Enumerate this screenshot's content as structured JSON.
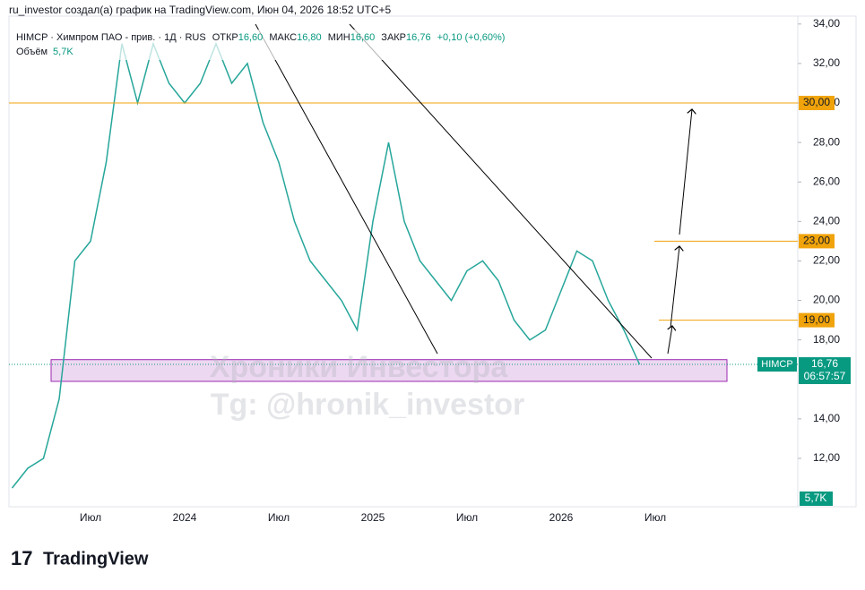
{
  "header": {
    "attribution": "ru_investor создал(а) график на TradingView.com, Июн 04, 2026 18:52 UTC+5",
    "symbol": "HIMCP · Химпром ПАО - прив. · 1Д · RUS",
    "open_label": "ОТКР",
    "open": "16,60",
    "high_label": "МАКС",
    "high": "16,80",
    "low_label": "МИН",
    "low": "16,60",
    "close_label": "ЗАКР",
    "close": "16,76",
    "change": "+0,10 (+0,60%)",
    "volume_label": "Объём",
    "volume": "5,7K"
  },
  "watermark": {
    "line1": "Хроники Инвестора",
    "line2": "Tg: @hronik_investor"
  },
  "price_tag": {
    "symbol": "HIMCP",
    "price": "16,76",
    "countdown": "06:57:57"
  },
  "volume_badge": "5,7K",
  "footer": {
    "logo": "TradingView"
  },
  "chart_data": {
    "type": "line",
    "color": "#26a69a",
    "categories": [
      null,
      null,
      null,
      null,
      null,
      "Июл",
      null,
      null,
      null,
      null,
      null,
      "2024",
      null,
      null,
      null,
      null,
      null,
      "Июл",
      null,
      null,
      null,
      null,
      null,
      "2025",
      null,
      null,
      null,
      null,
      null,
      "Июл",
      null,
      null,
      null,
      null,
      null,
      "2026",
      null,
      null,
      null,
      null,
      null,
      "Июл"
    ],
    "values": [
      10.5,
      11.5,
      12,
      15,
      22,
      23,
      27,
      33,
      30,
      33,
      31,
      30,
      31,
      33,
      31,
      32,
      29,
      27,
      24,
      22,
      21,
      20,
      18.5,
      24,
      28,
      24,
      22,
      21,
      20,
      21.5,
      22,
      21,
      19,
      18,
      18.5,
      20.5,
      22.5,
      22,
      20,
      18.5,
      16.76,
      null
    ],
    "ylim": [
      9.55,
      34.4
    ],
    "yticks": [
      {
        "value": 12,
        "label": "12,00"
      },
      {
        "value": 14,
        "label": "14,00"
      },
      {
        "value": 18,
        "label": "18,00"
      },
      {
        "value": 20,
        "label": "20,00"
      },
      {
        "value": 22,
        "label": "22,00"
      },
      {
        "value": 24,
        "label": "24,00"
      },
      {
        "value": 26,
        "label": "26,00"
      },
      {
        "value": 28,
        "label": "28,00"
      },
      {
        "value": 30,
        "label": "30,00"
      },
      {
        "value": 32,
        "label": "32,00"
      },
      {
        "value": 34,
        "label": "34,00"
      }
    ],
    "levels": [
      {
        "value": 30,
        "label": "30,00"
      },
      {
        "value": 23,
        "label": "23,00"
      },
      {
        "value": 19,
        "label": "19,00"
      }
    ],
    "zone": [
      15.9,
      17.0
    ],
    "last_price": 16.76
  }
}
